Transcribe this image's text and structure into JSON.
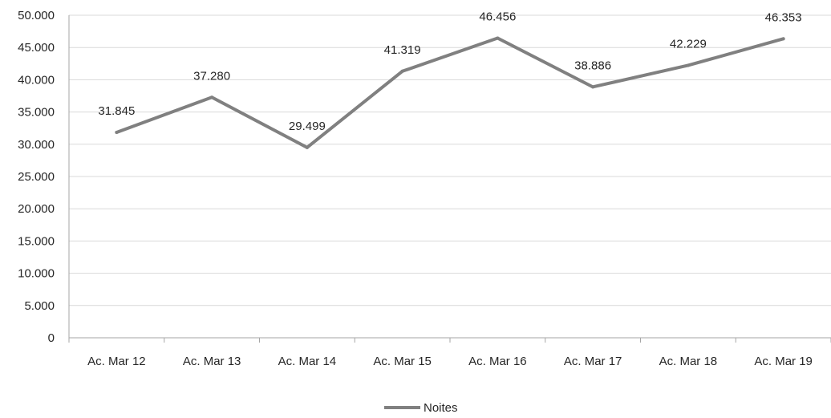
{
  "chart_data": {
    "type": "line",
    "categories": [
      "Ac. Mar 12",
      "Ac. Mar 13",
      "Ac. Mar 14",
      "Ac. Mar 15",
      "Ac. Mar 16",
      "Ac. Mar 17",
      "Ac. Mar 18",
      "Ac. Mar 19"
    ],
    "series": [
      {
        "name": "Noites",
        "values": [
          31845,
          37280,
          29499,
          41319,
          46456,
          38886,
          42229,
          46353
        ],
        "value_labels": [
          "31.845",
          "37.280",
          "29.499",
          "41.319",
          "46.456",
          "38.886",
          "42.229",
          "46.353"
        ],
        "color": "#808080"
      }
    ],
    "y_ticks": [
      0,
      5000,
      10000,
      15000,
      20000,
      25000,
      30000,
      35000,
      40000,
      45000,
      50000
    ],
    "y_tick_labels": [
      "0",
      "5.000",
      "10.000",
      "15.000",
      "20.000",
      "25.000",
      "30.000",
      "35.000",
      "40.000",
      "45.000",
      "50.000"
    ],
    "ylim": [
      0,
      50000
    ],
    "title": "",
    "xlabel": "",
    "ylabel": "",
    "grid": true,
    "legend_position": "bottom"
  }
}
